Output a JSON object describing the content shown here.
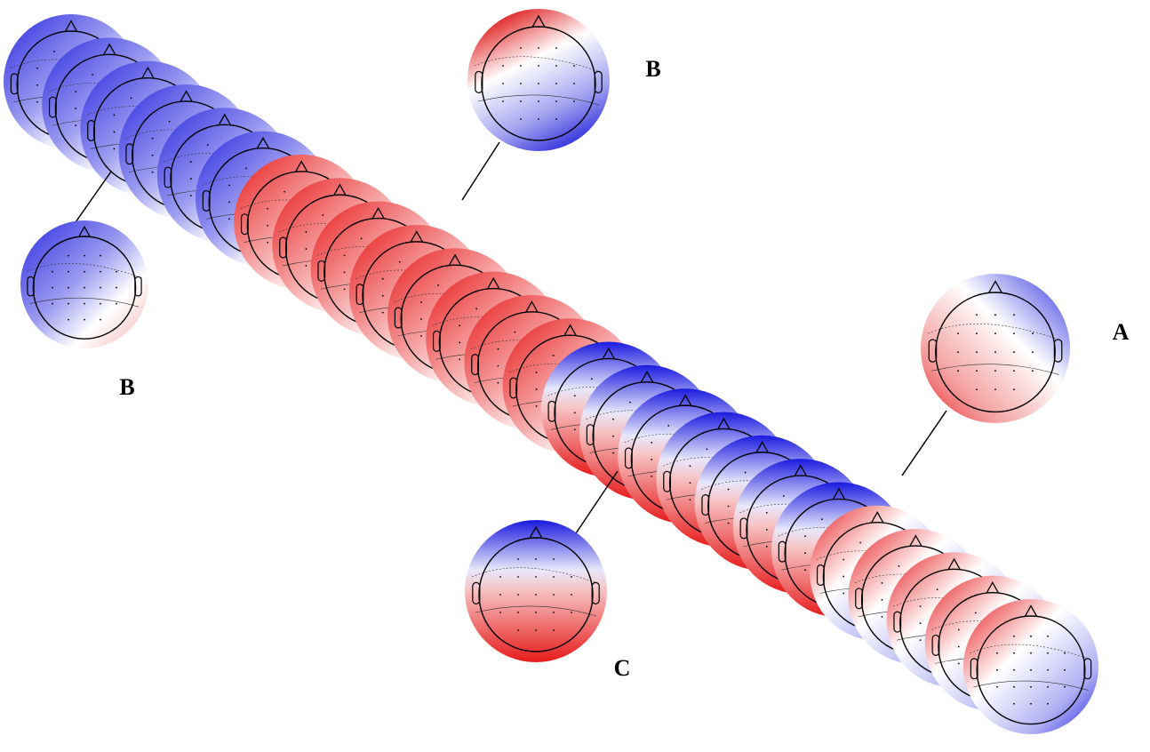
{
  "labels": {
    "top_b": "B",
    "left_b": "B",
    "right_a": "A",
    "bottom_c": "C"
  }
}
